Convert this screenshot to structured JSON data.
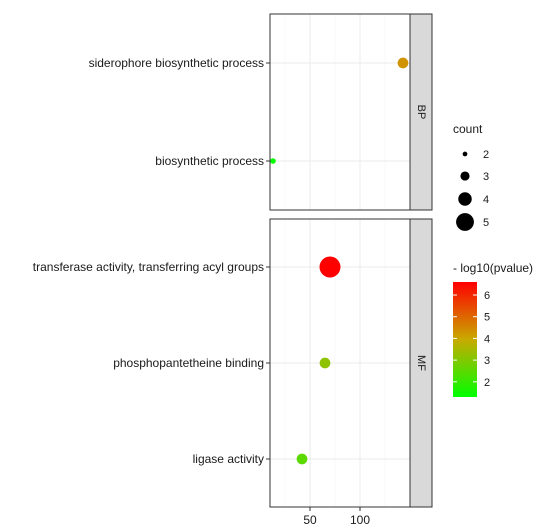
{
  "chart_data": {
    "type": "scatter",
    "title": "",
    "xlabel": "",
    "ylabel": "",
    "x_ticks": [
      50,
      100
    ],
    "x_range": [
      10,
      150
    ],
    "grid": true,
    "facets": [
      {
        "label": "BP",
        "categories": [
          "biosynthetic process",
          "siderophore biosynthetic process"
        ],
        "points": [
          {
            "category": "siderophore biosynthetic process",
            "x": 143,
            "count": 3,
            "neg_log10_pvalue": 4.3
          },
          {
            "category": "biosynthetic process",
            "x": 13,
            "count": 2,
            "neg_log10_pvalue": 1.3
          }
        ]
      },
      {
        "label": "MF",
        "categories": [
          "ligase activity",
          "phosphopantetheine binding",
          "transferase activity, transferring acyl groups"
        ],
        "points": [
          {
            "category": "transferase activity, transferring acyl groups",
            "x": 70,
            "count": 5,
            "neg_log10_pvalue": 6.6
          },
          {
            "category": "phosphopantetheine binding",
            "x": 65,
            "count": 3,
            "neg_log10_pvalue": 3.2
          },
          {
            "category": "ligase activity",
            "x": 42,
            "count": 3,
            "neg_log10_pvalue": 2.5
          }
        ]
      }
    ],
    "size_legend": {
      "title": "count",
      "values": [
        2,
        3,
        4,
        5
      ],
      "labels": [
        "2",
        "3",
        "4",
        "5"
      ]
    },
    "color_legend": {
      "title": "- log10(pvalue)",
      "range": [
        1.3,
        6.6
      ],
      "ticks": [
        2,
        3,
        4,
        5,
        6
      ],
      "tick_labels": [
        "2",
        "3",
        "4",
        "5",
        "6"
      ],
      "low_color": "#00ff00",
      "high_color": "#ff0000"
    },
    "colors": {
      "panel_border": "#333333",
      "strip_fill": "#d9d9d9",
      "grid_major": "#ebebeb",
      "grid_minor": "#f5f5f5"
    }
  }
}
